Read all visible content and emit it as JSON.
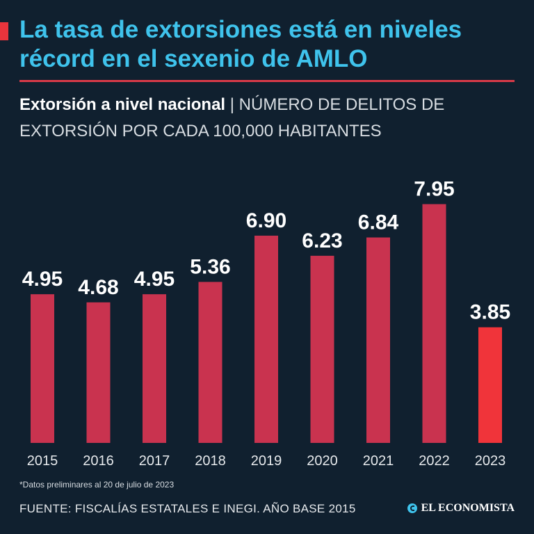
{
  "header": {
    "title": "La tasa de extorsiones está en niveles récord en el sexenio de AMLO",
    "subtitle_bold": "Extorsión a nivel nacional",
    "subtitle_separator": "|",
    "subtitle_light": "NÚMERO DE DELITOS DE EXTORSIÓN POR CADA 100,000 HABITANTES"
  },
  "footer": {
    "footnote": "*Datos preliminares al 20 de julio de 2023",
    "source": "FUENTE: FISCALÍAS ESTATALES E INEGI. AÑO BASE 2015",
    "brand": "EL ECONOMISTA"
  },
  "colors": {
    "background": "#10202f",
    "title": "#3fc3ec",
    "accent": "#e8343c",
    "bar": "#c9334f",
    "bar_highlight": "#f0343a"
  },
  "chart_data": {
    "type": "bar",
    "title": "Extorsión a nivel nacional",
    "ylabel": "NÚMERO DE DELITOS DE EXTORSIÓN POR CADA 100,000 HABITANTES",
    "xlabel": "",
    "categories": [
      "2015",
      "2016",
      "2017",
      "2018",
      "2019",
      "2020",
      "2021",
      "2022",
      "2023"
    ],
    "values": [
      4.95,
      4.68,
      4.95,
      5.36,
      6.9,
      6.23,
      6.84,
      7.95,
      3.85
    ],
    "value_labels": [
      "4.95",
      "4.68",
      "4.95",
      "5.36",
      "6.90",
      "6.23",
      "6.84",
      "7.95",
      "3.85"
    ],
    "highlight_index": 8,
    "ylim": [
      0,
      8
    ],
    "grid": false
  }
}
